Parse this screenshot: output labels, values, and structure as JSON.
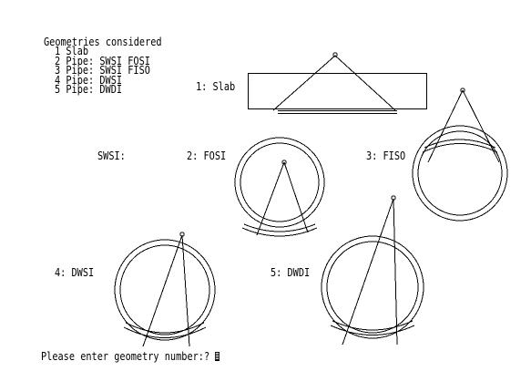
{
  "menu": {
    "title": "Geometries considered",
    "items": [
      {
        "num": "1",
        "label": "Slab"
      },
      {
        "num": "2",
        "label": "Pipe: SWSI FOSI"
      },
      {
        "num": "3",
        "label": "Pipe: SWSI FISO"
      },
      {
        "num": "4",
        "label": "Pipe: DWSI"
      },
      {
        "num": "5",
        "label": "Pipe: DWDI"
      }
    ]
  },
  "diagrams": {
    "slab_label": "1: Slab",
    "swsi_label": "SWSI:",
    "fosi_label": "2: FOSI",
    "fiso_label": "3: FISO",
    "dwsi_label": "4: DWSI",
    "dwdi_label": "5: DWDI"
  },
  "prompt": {
    "text": "Please enter geometry number:? "
  },
  "colors": {
    "foreground": "#000000",
    "background": "#ffffff"
  }
}
